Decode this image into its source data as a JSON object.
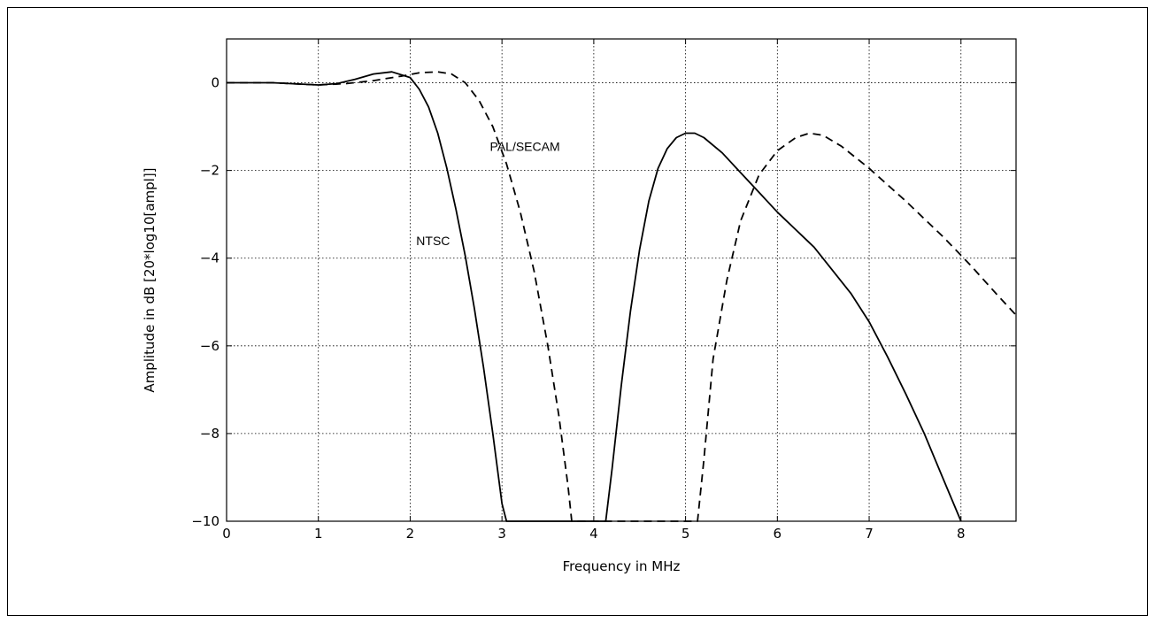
{
  "chart_data": {
    "type": "line",
    "title": "",
    "xlabel": "Frequency in MHz",
    "ylabel": "Amplitude in dB [20*log10[ampl]]",
    "xlim": [
      0,
      8.6
    ],
    "ylim": [
      -10,
      1
    ],
    "xticks": [
      0,
      1,
      2,
      3,
      4,
      5,
      6,
      7,
      8
    ],
    "yticks": [
      0,
      -2,
      -4,
      -6,
      -8,
      -10
    ],
    "xtick_labels": [
      "0",
      "1",
      "2",
      "3",
      "4",
      "5",
      "6",
      "7",
      "8"
    ],
    "ytick_labels": [
      "0",
      "−2",
      "−4",
      "−6",
      "−8",
      "−10"
    ],
    "grid": true,
    "series": [
      {
        "name": "NTSC",
        "style": "solid",
        "color": "#000000",
        "x": [
          0,
          0.5,
          1.0,
          1.2,
          1.4,
          1.6,
          1.8,
          2.0,
          2.1,
          2.2,
          2.3,
          2.4,
          2.5,
          2.6,
          2.7,
          2.8,
          2.9,
          3.0,
          3.05,
          3.5,
          4.13,
          4.2,
          4.3,
          4.4,
          4.5,
          4.6,
          4.7,
          4.8,
          4.9,
          5.0,
          5.1,
          5.2,
          5.4,
          5.6,
          5.8,
          6.0,
          6.4,
          6.8,
          7.0,
          7.2,
          7.4,
          7.6,
          7.8,
          8.0
        ],
        "y": [
          0,
          0.0,
          -0.05,
          -0.02,
          0.08,
          0.2,
          0.25,
          0.12,
          -0.15,
          -0.55,
          -1.15,
          -1.95,
          -2.9,
          -3.95,
          -5.15,
          -6.5,
          -8.0,
          -9.6,
          -10,
          -10,
          -10,
          -8.8,
          -6.9,
          -5.2,
          -3.8,
          -2.7,
          -1.95,
          -1.5,
          -1.25,
          -1.15,
          -1.15,
          -1.25,
          -1.6,
          -2.05,
          -2.5,
          -2.95,
          -3.75,
          -4.8,
          -5.45,
          -6.25,
          -7.1,
          -8.0,
          -9.0,
          -10
        ]
      },
      {
        "name": "PAL/SECAM",
        "style": "dashed",
        "color": "#000000",
        "x": [
          0,
          0.5,
          1.0,
          1.3,
          1.6,
          1.9,
          2.1,
          2.3,
          2.45,
          2.6,
          2.75,
          2.9,
          3.05,
          3.2,
          3.35,
          3.5,
          3.62,
          3.72,
          3.76,
          4.5,
          5.13,
          5.2,
          5.3,
          5.45,
          5.6,
          5.8,
          6.0,
          6.2,
          6.35,
          6.5,
          6.7,
          7.0,
          7.4,
          7.8,
          8.1,
          8.4,
          8.6
        ],
        "y": [
          0,
          0,
          -0.05,
          -0.02,
          0.05,
          0.15,
          0.23,
          0.25,
          0.2,
          0.0,
          -0.4,
          -1.0,
          -1.85,
          -2.95,
          -4.3,
          -6.0,
          -7.6,
          -9.2,
          -10,
          -10,
          -10,
          -8.6,
          -6.3,
          -4.5,
          -3.15,
          -2.1,
          -1.55,
          -1.25,
          -1.15,
          -1.2,
          -1.45,
          -1.95,
          -2.7,
          -3.5,
          -4.15,
          -4.85,
          -5.3
        ]
      }
    ],
    "annotations": [
      {
        "text": "NTSC",
        "x": 2.25,
        "y": -3.7
      },
      {
        "text": "PAL/SECAM",
        "x": 3.25,
        "y": -1.55
      }
    ]
  }
}
